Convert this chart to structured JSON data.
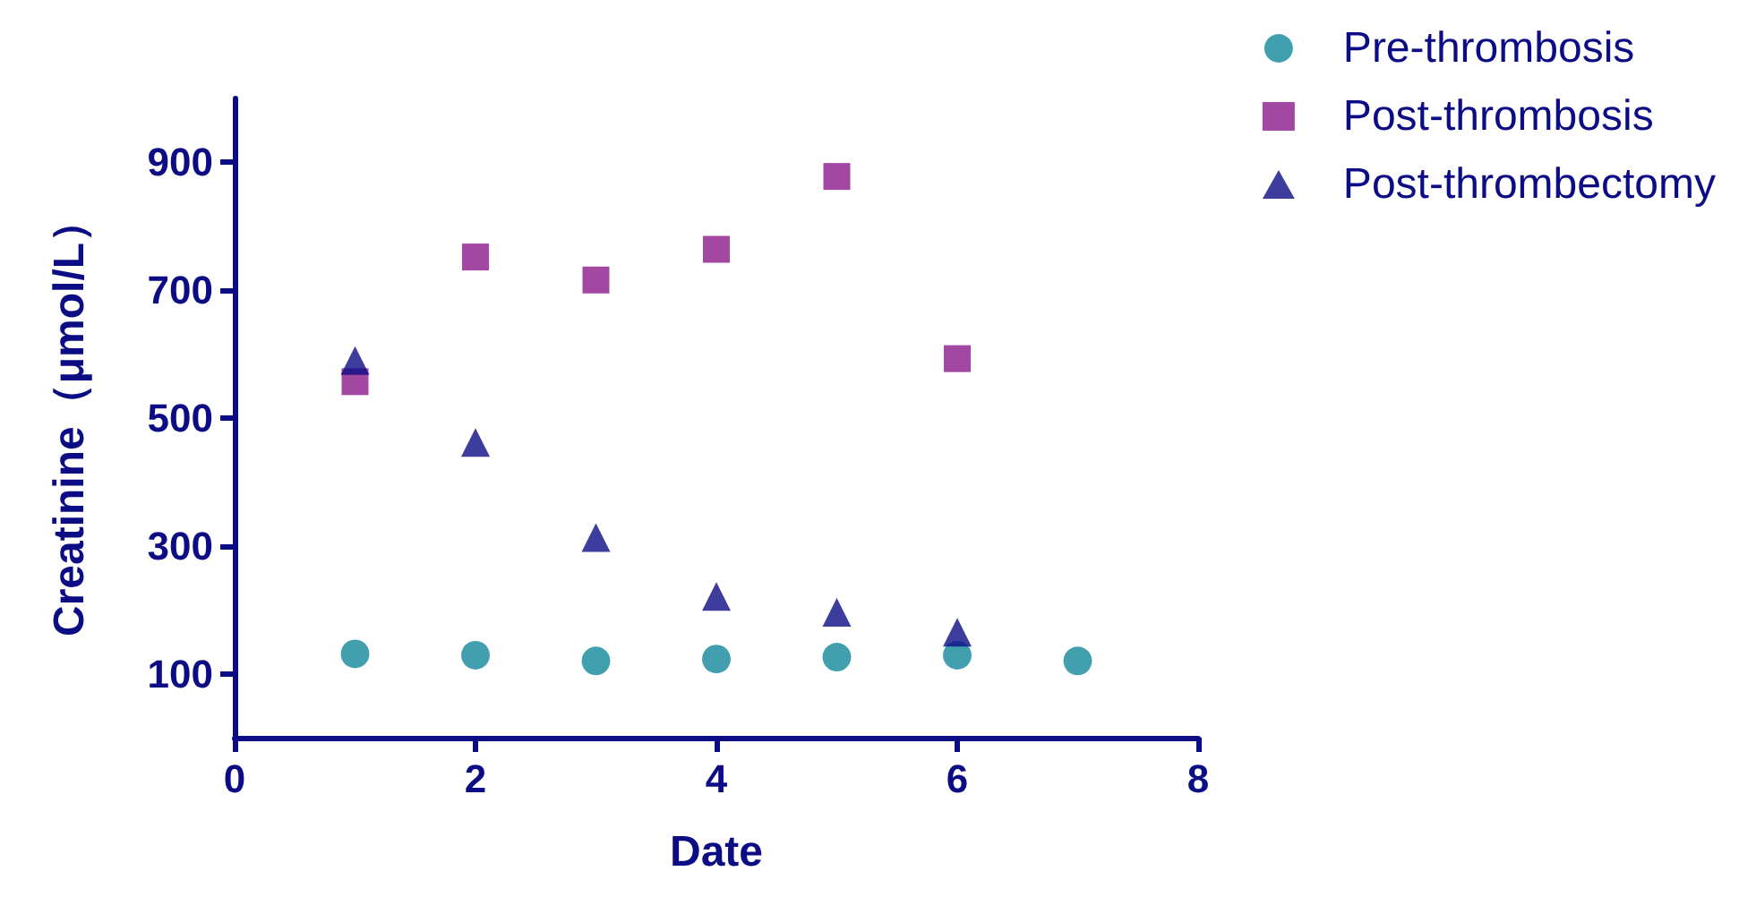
{
  "chart_data": {
    "type": "scatter",
    "xlabel": "Date",
    "ylabel": "Creatinine（μmol/L）",
    "xlim": [
      0,
      8
    ],
    "xticks": [
      0,
      2,
      4,
      6,
      8
    ],
    "ylim": [
      0,
      1000
    ],
    "yticks": [
      100,
      300,
      500,
      700,
      900
    ],
    "grid": false,
    "legend": "top right",
    "series": [
      {
        "name": "Pre-thrombosis",
        "color": "#12879a",
        "marker": "circle",
        "x": [
          1,
          2,
          3,
          4,
          5,
          6,
          7
        ],
        "values": [
          131,
          129,
          120,
          123,
          126,
          129,
          120
        ]
      },
      {
        "name": "Post-thrombosis",
        "color": "#8b1a8b",
        "marker": "square",
        "x": [
          1,
          2,
          3,
          4,
          5,
          6
        ],
        "values": [
          557,
          752,
          716,
          764,
          878,
          593
        ]
      },
      {
        "name": "Post-thrombectomy",
        "color": "#0c0c85",
        "marker": "triangle",
        "x": [
          1,
          2,
          3,
          4,
          5,
          6
        ],
        "values": [
          590,
          462,
          313,
          221,
          196,
          165
        ]
      }
    ]
  }
}
